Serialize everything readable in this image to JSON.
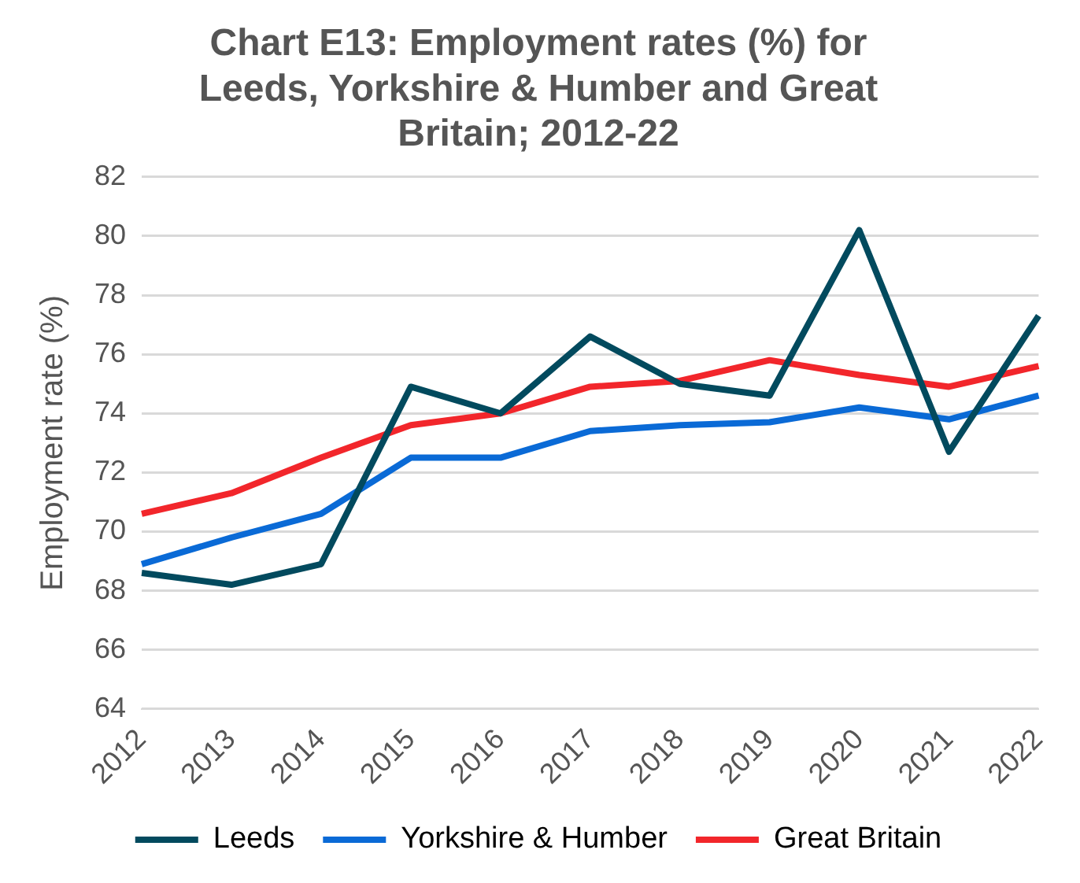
{
  "chart_data": {
    "type": "line",
    "title": "Chart E13: Employment rates (%) for Leeds, Yorkshire & Humber and Great Britain; 2012-22",
    "ylabel": "Employment rate (%)",
    "categories": [
      "2012",
      "2013",
      "2014",
      "2015",
      "2016",
      "2017",
      "2018",
      "2019",
      "2020",
      "2021",
      "2022"
    ],
    "series": [
      {
        "name": "Leeds",
        "color": "#024a5e",
        "values": [
          68.6,
          68.2,
          68.9,
          74.9,
          74.0,
          76.6,
          75.0,
          74.6,
          80.2,
          72.7,
          77.3
        ]
      },
      {
        "name": "Yorkshire & Humber",
        "color": "#0a6ad6",
        "values": [
          68.9,
          69.8,
          70.6,
          72.5,
          72.5,
          73.4,
          73.6,
          73.7,
          74.2,
          73.8,
          74.6
        ]
      },
      {
        "name": "Great Britain",
        "color": "#f2262b",
        "values": [
          70.6,
          71.3,
          72.5,
          73.6,
          74.0,
          74.9,
          75.1,
          75.8,
          75.3,
          74.9,
          75.6
        ]
      }
    ],
    "ylim": [
      64,
      82
    ],
    "yticks": [
      64,
      66,
      68,
      70,
      72,
      74,
      76,
      78,
      80,
      82
    ],
    "grid": "y",
    "legend": "bottom",
    "marker": "none",
    "line_style": "solid"
  }
}
